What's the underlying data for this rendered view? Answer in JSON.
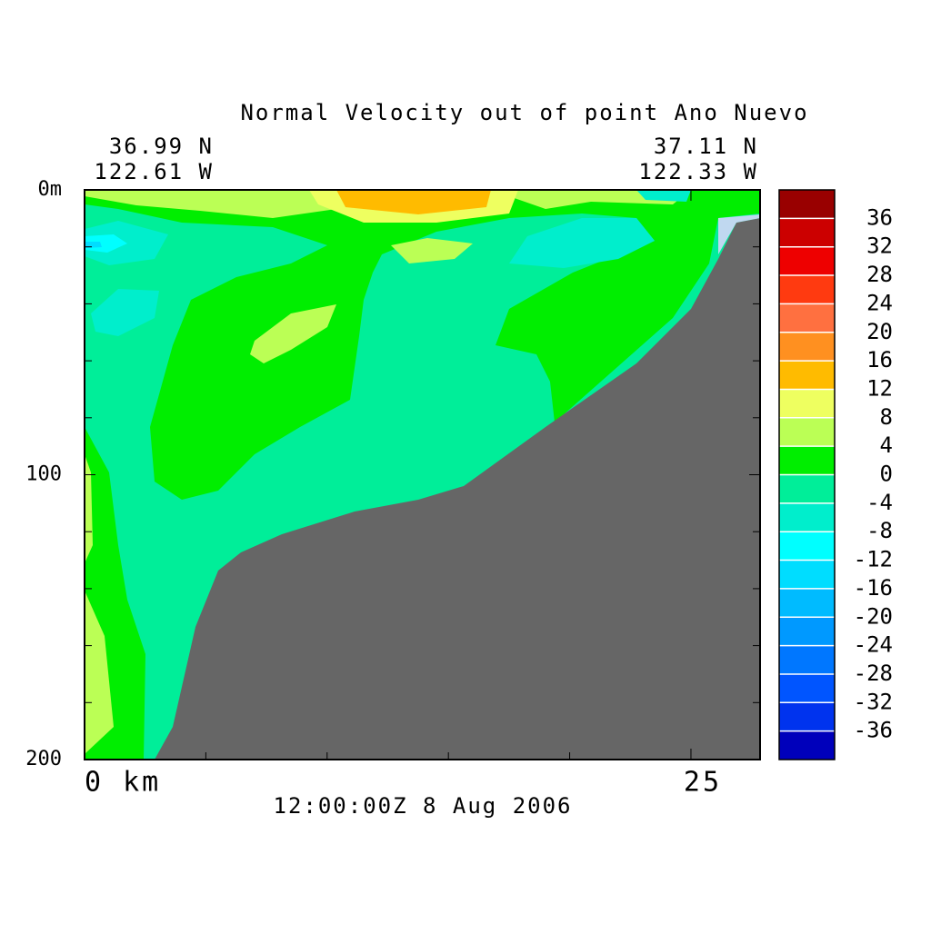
{
  "chart_data": {
    "type": "contour",
    "title": "Normal Velocity out of point Ano Nuevo",
    "left_lat": "36.99 N",
    "left_lon": "122.61 W",
    "right_lat": "37.11 N",
    "right_lon": "122.33 W",
    "time_label": "12:00:00Z   8 Aug 2006",
    "xlim": [
      0,
      27.85
    ],
    "xticks": [
      {
        "value": 0,
        "label": "0 km"
      },
      25
    ],
    "xminor_ticks": [
      5,
      10,
      15,
      20
    ],
    "ylim": [
      0,
      200
    ],
    "yticks": [
      {
        "value": 0,
        "label": "0m"
      },
      100,
      200
    ],
    "yminor_ticks": [
      20,
      40,
      60,
      80,
      120,
      140,
      160,
      180
    ],
    "levels": [
      36,
      32,
      28,
      24,
      20,
      16,
      12,
      8,
      4,
      0,
      -4,
      -8,
      -12,
      -16,
      -20,
      -24,
      -28,
      -32,
      -36
    ],
    "colors": [
      "#990000",
      "#cc0000",
      "#ee0000",
      "#ff3a10",
      "#ff7040",
      "#ff9020",
      "#ffbb00",
      "#eeff60",
      "#bbff55",
      "#00ee00",
      "#00ee99",
      "#00eecc",
      "#00ffff",
      "#00ddff",
      "#00bbff",
      "#0099ff",
      "#0077ff",
      "#0055ff",
      "#0033ee",
      "#0000bb"
    ],
    "land_color": "#666666",
    "missing_color": "#c0d8f0"
  }
}
